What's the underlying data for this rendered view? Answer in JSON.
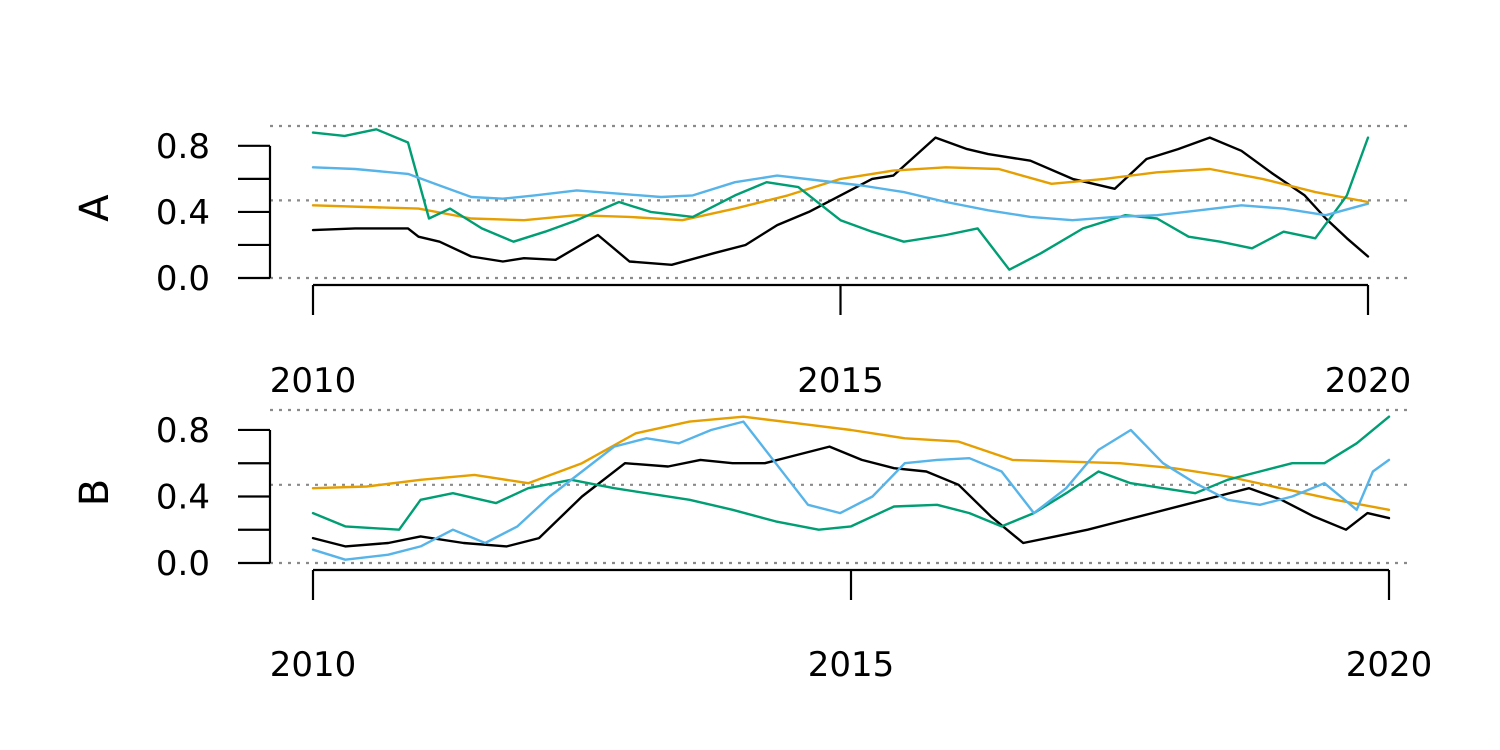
{
  "chart_data": [
    {
      "type": "line",
      "panel_label": "A",
      "xlim": [
        2010,
        2020
      ],
      "ylim": [
        0,
        0.92
      ],
      "x_ticks": [
        2010,
        2015,
        2020
      ],
      "x_tick_labels": [
        "2010",
        "2015",
        "2020"
      ],
      "y_ticks": [
        0.0,
        0.2,
        0.4,
        0.6,
        0.8
      ],
      "y_tick_labels": [
        "0.0",
        "0.4",
        "0.8"
      ],
      "y_tick_label_values": [
        0.0,
        0.4,
        0.8
      ],
      "reference_lines": [
        0.0,
        0.47,
        0.92
      ],
      "series": [
        {
          "color": "#000000",
          "x": [
            2010.0,
            2010.4,
            2010.9,
            2011.0,
            2011.2,
            2011.5,
            2011.8,
            2012.0,
            2012.3,
            2012.7,
            2013.0,
            2013.4,
            2013.8,
            2014.1,
            2014.4,
            2014.7,
            2015.0,
            2015.3,
            2015.5,
            2015.9,
            2016.2,
            2016.4,
            2016.8,
            2017.2,
            2017.6,
            2017.9,
            2018.2,
            2018.5,
            2018.8,
            2019.1,
            2019.4,
            2019.6,
            2019.8,
            2020.0
          ],
          "y": [
            0.29,
            0.3,
            0.3,
            0.25,
            0.22,
            0.13,
            0.1,
            0.12,
            0.11,
            0.26,
            0.1,
            0.08,
            0.15,
            0.2,
            0.32,
            0.4,
            0.5,
            0.6,
            0.62,
            0.85,
            0.78,
            0.75,
            0.71,
            0.6,
            0.54,
            0.72,
            0.78,
            0.85,
            0.77,
            0.63,
            0.5,
            0.36,
            0.24,
            0.13
          ]
        },
        {
          "color": "#E69F00",
          "x": [
            2010.0,
            2010.5,
            2011.0,
            2011.5,
            2012.0,
            2012.5,
            2013.0,
            2013.5,
            2014.0,
            2014.5,
            2015.0,
            2015.5,
            2016.0,
            2016.5,
            2017.0,
            2017.5,
            2018.0,
            2018.5,
            2019.0,
            2019.5,
            2020.0
          ],
          "y": [
            0.44,
            0.43,
            0.42,
            0.36,
            0.35,
            0.38,
            0.37,
            0.35,
            0.42,
            0.5,
            0.6,
            0.65,
            0.67,
            0.66,
            0.57,
            0.6,
            0.64,
            0.66,
            0.6,
            0.52,
            0.46
          ]
        },
        {
          "color": "#009E73",
          "x": [
            2010.0,
            2010.3,
            2010.6,
            2010.9,
            2011.1,
            2011.3,
            2011.6,
            2011.9,
            2012.2,
            2012.5,
            2012.9,
            2013.2,
            2013.6,
            2014.0,
            2014.3,
            2014.6,
            2015.0,
            2015.3,
            2015.6,
            2016.0,
            2016.3,
            2016.6,
            2016.9,
            2017.3,
            2017.7,
            2018.0,
            2018.3,
            2018.6,
            2018.9,
            2019.2,
            2019.5,
            2019.8,
            2020.0
          ],
          "y": [
            0.88,
            0.86,
            0.9,
            0.82,
            0.36,
            0.42,
            0.3,
            0.22,
            0.28,
            0.35,
            0.46,
            0.4,
            0.37,
            0.5,
            0.58,
            0.55,
            0.35,
            0.28,
            0.22,
            0.26,
            0.3,
            0.05,
            0.15,
            0.3,
            0.38,
            0.36,
            0.25,
            0.22,
            0.18,
            0.28,
            0.24,
            0.5,
            0.85
          ]
        },
        {
          "color": "#56B4E9",
          "x": [
            2010.0,
            2010.4,
            2010.9,
            2011.2,
            2011.5,
            2011.8,
            2012.1,
            2012.5,
            2012.9,
            2013.3,
            2013.6,
            2014.0,
            2014.4,
            2014.8,
            2015.2,
            2015.6,
            2016.0,
            2016.4,
            2016.8,
            2017.2,
            2017.6,
            2018.0,
            2018.4,
            2018.8,
            2019.2,
            2019.6,
            2020.0
          ],
          "y": [
            0.67,
            0.66,
            0.63,
            0.56,
            0.49,
            0.48,
            0.5,
            0.53,
            0.51,
            0.49,
            0.5,
            0.58,
            0.62,
            0.59,
            0.56,
            0.52,
            0.46,
            0.41,
            0.37,
            0.35,
            0.37,
            0.38,
            0.41,
            0.44,
            0.42,
            0.38,
            0.45
          ]
        }
      ]
    },
    {
      "type": "line",
      "panel_label": "B",
      "xlim": [
        2010,
        2020
      ],
      "ylim": [
        0,
        0.92
      ],
      "x_ticks": [
        2010,
        2015,
        2020
      ],
      "x_tick_labels": [
        "2010",
        "2015",
        "2020"
      ],
      "y_ticks": [
        0.0,
        0.2,
        0.4,
        0.6,
        0.8
      ],
      "y_tick_labels": [
        "0.0",
        "0.4",
        "0.8"
      ],
      "y_tick_label_values": [
        0.0,
        0.4,
        0.8
      ],
      "reference_lines": [
        0.0,
        0.47,
        0.92
      ],
      "series": [
        {
          "color": "#000000",
          "x": [
            2010.0,
            2010.3,
            2010.7,
            2011.0,
            2011.4,
            2011.8,
            2012.1,
            2012.5,
            2012.9,
            2013.3,
            2013.6,
            2013.9,
            2014.2,
            2014.5,
            2014.8,
            2015.1,
            2015.4,
            2015.7,
            2016.0,
            2016.3,
            2016.6,
            2016.9,
            2017.2,
            2017.5,
            2017.8,
            2018.1,
            2018.4,
            2018.7,
            2019.0,
            2019.3,
            2019.6,
            2019.8,
            2020.0
          ],
          "y": [
            0.15,
            0.1,
            0.12,
            0.16,
            0.12,
            0.1,
            0.15,
            0.4,
            0.6,
            0.58,
            0.62,
            0.6,
            0.6,
            0.65,
            0.7,
            0.62,
            0.57,
            0.55,
            0.47,
            0.28,
            0.12,
            0.16,
            0.2,
            0.25,
            0.3,
            0.35,
            0.4,
            0.45,
            0.38,
            0.28,
            0.2,
            0.3,
            0.27
          ]
        },
        {
          "color": "#E69F00",
          "x": [
            2010.0,
            2010.5,
            2011.0,
            2011.5,
            2012.0,
            2012.5,
            2013.0,
            2013.5,
            2014.0,
            2014.5,
            2015.0,
            2015.5,
            2016.0,
            2016.5,
            2017.0,
            2017.5,
            2018.0,
            2018.5,
            2019.0,
            2019.5,
            2020.0
          ],
          "y": [
            0.45,
            0.46,
            0.5,
            0.53,
            0.48,
            0.6,
            0.78,
            0.85,
            0.88,
            0.84,
            0.8,
            0.75,
            0.73,
            0.62,
            0.61,
            0.6,
            0.57,
            0.52,
            0.45,
            0.38,
            0.32
          ]
        },
        {
          "color": "#009E73",
          "x": [
            2010.0,
            2010.3,
            2010.8,
            2011.0,
            2011.3,
            2011.7,
            2012.0,
            2012.4,
            2012.8,
            2013.1,
            2013.5,
            2013.9,
            2014.3,
            2014.7,
            2015.0,
            2015.4,
            2015.8,
            2016.1,
            2016.4,
            2016.7,
            2017.0,
            2017.3,
            2017.6,
            2017.9,
            2018.2,
            2018.5,
            2018.8,
            2019.1,
            2019.4,
            2019.7,
            2020.0
          ],
          "y": [
            0.3,
            0.22,
            0.2,
            0.38,
            0.42,
            0.36,
            0.45,
            0.5,
            0.45,
            0.42,
            0.38,
            0.32,
            0.25,
            0.2,
            0.22,
            0.34,
            0.35,
            0.3,
            0.22,
            0.3,
            0.42,
            0.55,
            0.48,
            0.45,
            0.42,
            0.5,
            0.55,
            0.6,
            0.6,
            0.72,
            0.88
          ]
        },
        {
          "color": "#56B4E9",
          "x": [
            2010.0,
            2010.3,
            2010.7,
            2011.0,
            2011.3,
            2011.6,
            2011.9,
            2012.2,
            2012.5,
            2012.8,
            2013.1,
            2013.4,
            2013.7,
            2014.0,
            2014.3,
            2014.6,
            2014.9,
            2015.2,
            2015.5,
            2015.8,
            2016.1,
            2016.4,
            2016.7,
            2017.0,
            2017.3,
            2017.6,
            2017.9,
            2018.2,
            2018.5,
            2018.8,
            2019.1,
            2019.4,
            2019.7,
            2019.85,
            2020.0
          ],
          "y": [
            0.08,
            0.02,
            0.05,
            0.1,
            0.2,
            0.12,
            0.22,
            0.4,
            0.55,
            0.7,
            0.75,
            0.72,
            0.8,
            0.85,
            0.6,
            0.35,
            0.3,
            0.4,
            0.6,
            0.62,
            0.63,
            0.55,
            0.3,
            0.45,
            0.68,
            0.8,
            0.6,
            0.48,
            0.38,
            0.35,
            0.4,
            0.48,
            0.32,
            0.55,
            0.62
          ]
        }
      ]
    }
  ]
}
